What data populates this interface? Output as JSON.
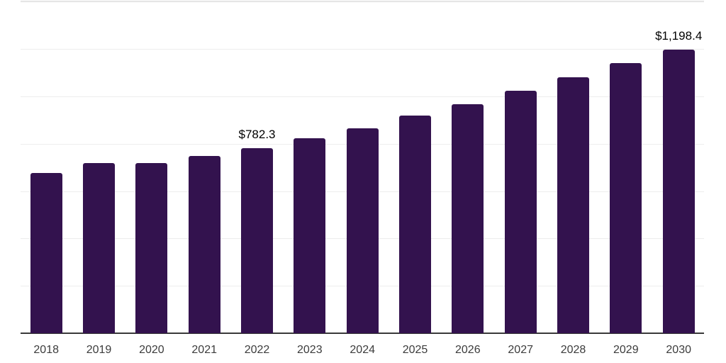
{
  "chart_data": {
    "type": "bar",
    "title": "",
    "xlabel": "",
    "ylabel": "",
    "categories": [
      "2018",
      "2019",
      "2020",
      "2021",
      "2022",
      "2023",
      "2024",
      "2025",
      "2026",
      "2027",
      "2028",
      "2029",
      "2030"
    ],
    "values": [
      678.1,
      720.1,
      718.6,
      748.5,
      782.3,
      823.4,
      866.2,
      917.8,
      968.0,
      1022.9,
      1079.9,
      1139.8,
      1198.4
    ],
    "value_labels": {
      "4": "$782.3",
      "12": "$1,198.4"
    },
    "value_prefix": "$",
    "ylim": [
      0,
      1400
    ],
    "grid_step": 200,
    "grid": true,
    "y_tick_labels_visible": false,
    "legend_position": "none",
    "colors": {
      "bar": "#33124e",
      "axis": "#3a3a3a",
      "gridline": "#ededed",
      "top_gridline": "#d9d9d9",
      "top_band": "#f4f4f4",
      "tick_text": "#3c3c3c",
      "value_label_text": "#000000",
      "background": "#ffffff"
    }
  }
}
